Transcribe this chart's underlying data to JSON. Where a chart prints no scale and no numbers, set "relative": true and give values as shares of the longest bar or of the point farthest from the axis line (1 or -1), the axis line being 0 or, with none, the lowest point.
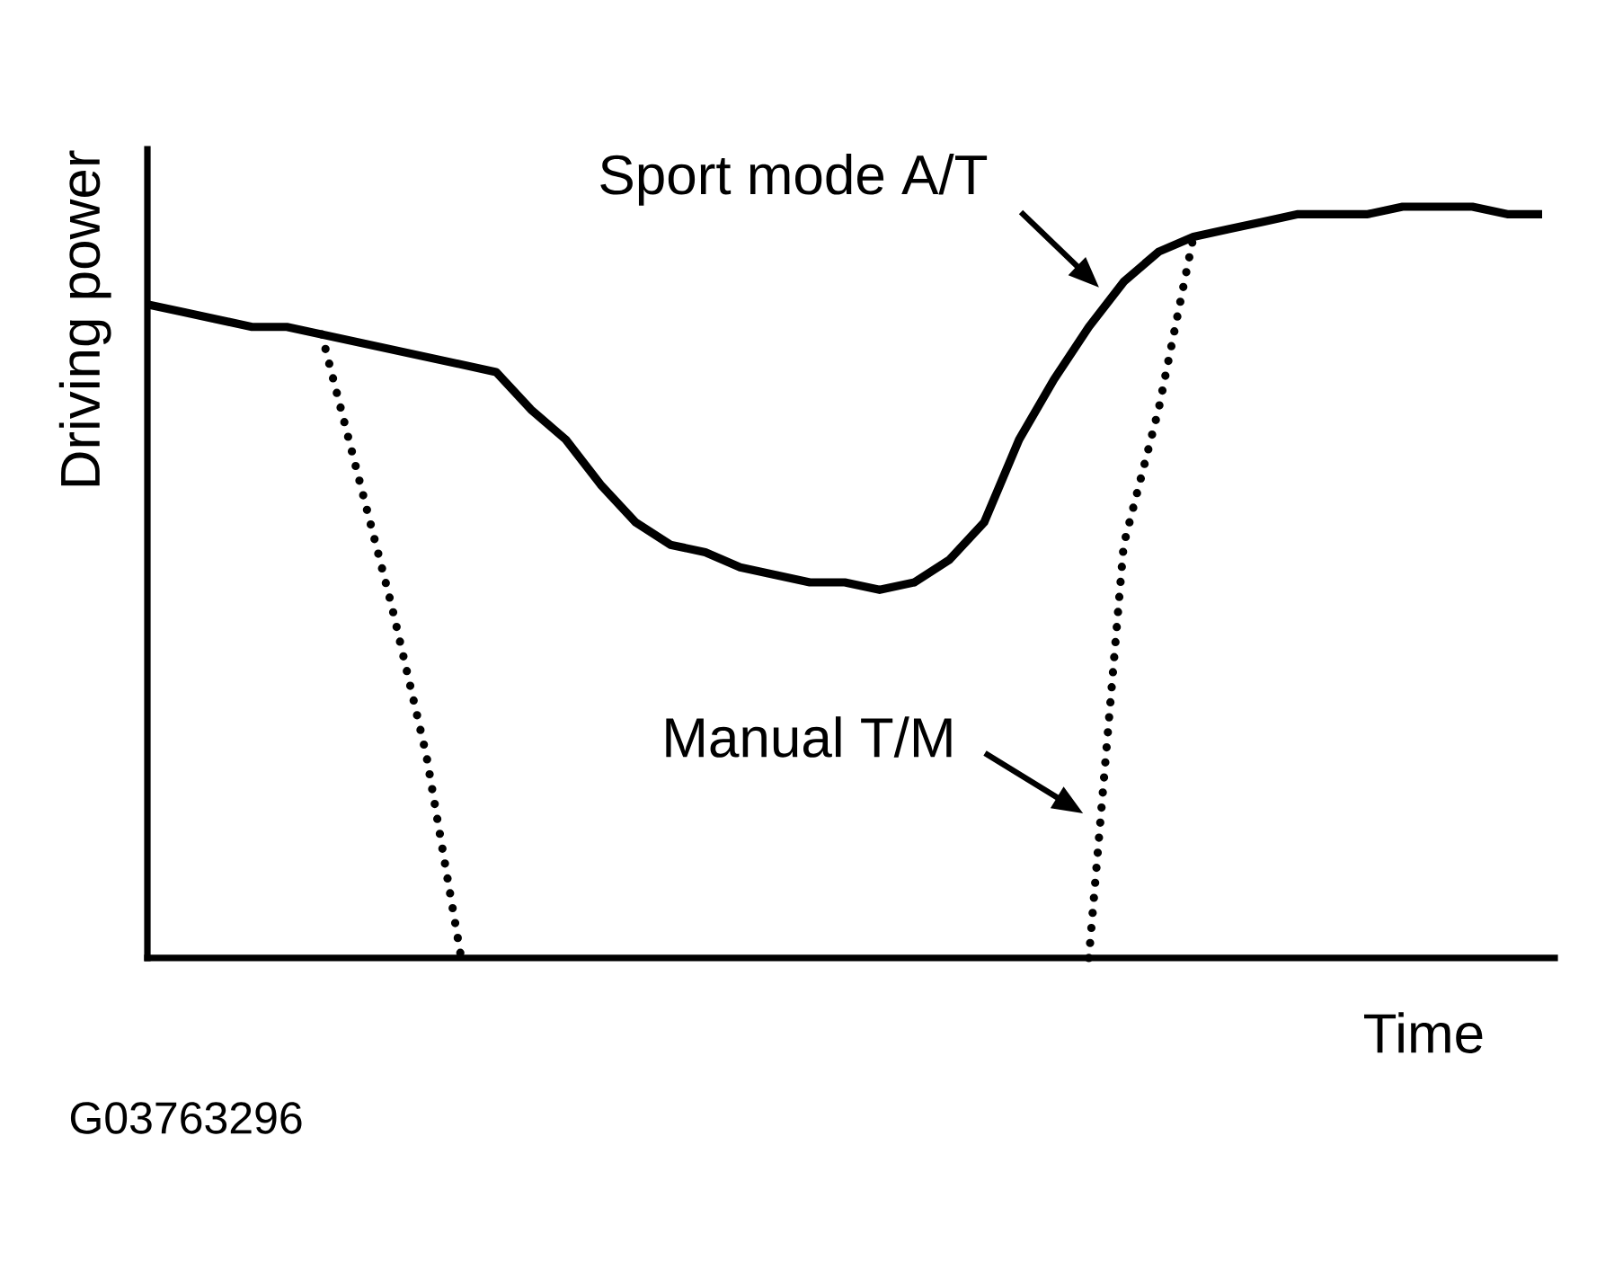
{
  "chart_data": {
    "type": "line",
    "relative": true,
    "xlabel": "Time",
    "ylabel": "Driving power",
    "annotations": [
      "G03763296"
    ],
    "categories": [
      null,
      null,
      null,
      null,
      null,
      null,
      null,
      null,
      null,
      null,
      null,
      null,
      null,
      null,
      null,
      null,
      null,
      null,
      null,
      null,
      null,
      null,
      null,
      null,
      null,
      null,
      null,
      null,
      null,
      null,
      null,
      null,
      null,
      null,
      null,
      null,
      null,
      null,
      null,
      null,
      null
    ],
    "series": [
      {
        "name": "Sport mode A/T",
        "color": "#000000",
        "line_style": "solid",
        "values": [
          0.87,
          0.86,
          0.85,
          0.84,
          0.84,
          0.83,
          0.82,
          0.81,
          0.8,
          0.79,
          0.78,
          0.73,
          0.69,
          0.63,
          0.58,
          0.55,
          0.54,
          0.52,
          0.51,
          0.5,
          0.5,
          0.49,
          0.5,
          0.53,
          0.58,
          0.69,
          0.77,
          0.84,
          0.9,
          0.94,
          0.96,
          0.97,
          0.98,
          0.99,
          0.99,
          0.99,
          1,
          1,
          1,
          0.99,
          0.99
        ]
      },
      {
        "name": "Manual T/M",
        "color": "#000000",
        "line_style": "dotted",
        "values": [
          null,
          null,
          null,
          null,
          null,
          0.83,
          0.65,
          0.47,
          0.27,
          0,
          null,
          null,
          null,
          null,
          null,
          null,
          null,
          null,
          null,
          null,
          null,
          null,
          null,
          null,
          null,
          null,
          null,
          0,
          0.55,
          0.73,
          0.96,
          null,
          null,
          null,
          null,
          null,
          null,
          null,
          null,
          null,
          null
        ]
      }
    ]
  }
}
